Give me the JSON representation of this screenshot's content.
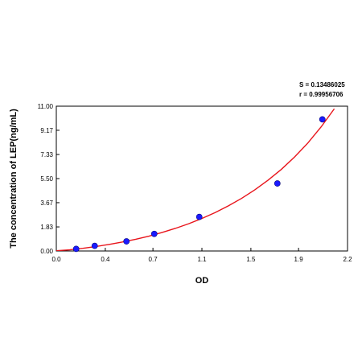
{
  "chart_data": {
    "type": "scatter",
    "xlabel": "OD",
    "ylabel": "The concentration of LEP(ng/mL)",
    "xlim": [
      0.0,
      2.2
    ],
    "ylim": [
      0.0,
      11.0
    ],
    "xticks": [
      "0.0",
      "0.4",
      "0.7",
      "1.1",
      "1.5",
      "1.9",
      "2.2"
    ],
    "xtick_values": [
      0.0,
      0.37,
      0.73,
      1.1,
      1.47,
      1.83,
      2.2
    ],
    "yticks": [
      "0.00",
      "1.83",
      "3.67",
      "5.50",
      "7.33",
      "9.17",
      "11.00"
    ],
    "ytick_values": [
      0.0,
      1.83,
      3.67,
      5.5,
      7.33,
      9.17,
      11.0
    ],
    "points": {
      "x": [
        0.15,
        0.29,
        0.53,
        0.74,
        1.08,
        1.67,
        2.01
      ],
      "y": [
        0.16,
        0.39,
        0.73,
        1.3,
        2.59,
        5.13,
        10.0
      ]
    },
    "fit_curve": {
      "color": "#e8141b",
      "x": [
        0.0,
        0.1,
        0.2,
        0.3,
        0.4,
        0.5,
        0.6,
        0.7,
        0.8,
        0.9,
        1.0,
        1.1,
        1.2,
        1.3,
        1.4,
        1.5,
        1.6,
        1.7,
        1.8,
        1.9,
        2.0,
        2.1
      ],
      "y": [
        0.02,
        0.09,
        0.2,
        0.34,
        0.5,
        0.68,
        0.89,
        1.13,
        1.41,
        1.72,
        2.07,
        2.47,
        2.92,
        3.43,
        4.0,
        4.65,
        5.38,
        6.2,
        7.14,
        8.2,
        9.42,
        10.8
      ]
    },
    "point_color": "#1a1aff",
    "grid": false,
    "stats": {
      "s": "S = 0.13486025",
      "r": "r = 0.99956706"
    }
  }
}
